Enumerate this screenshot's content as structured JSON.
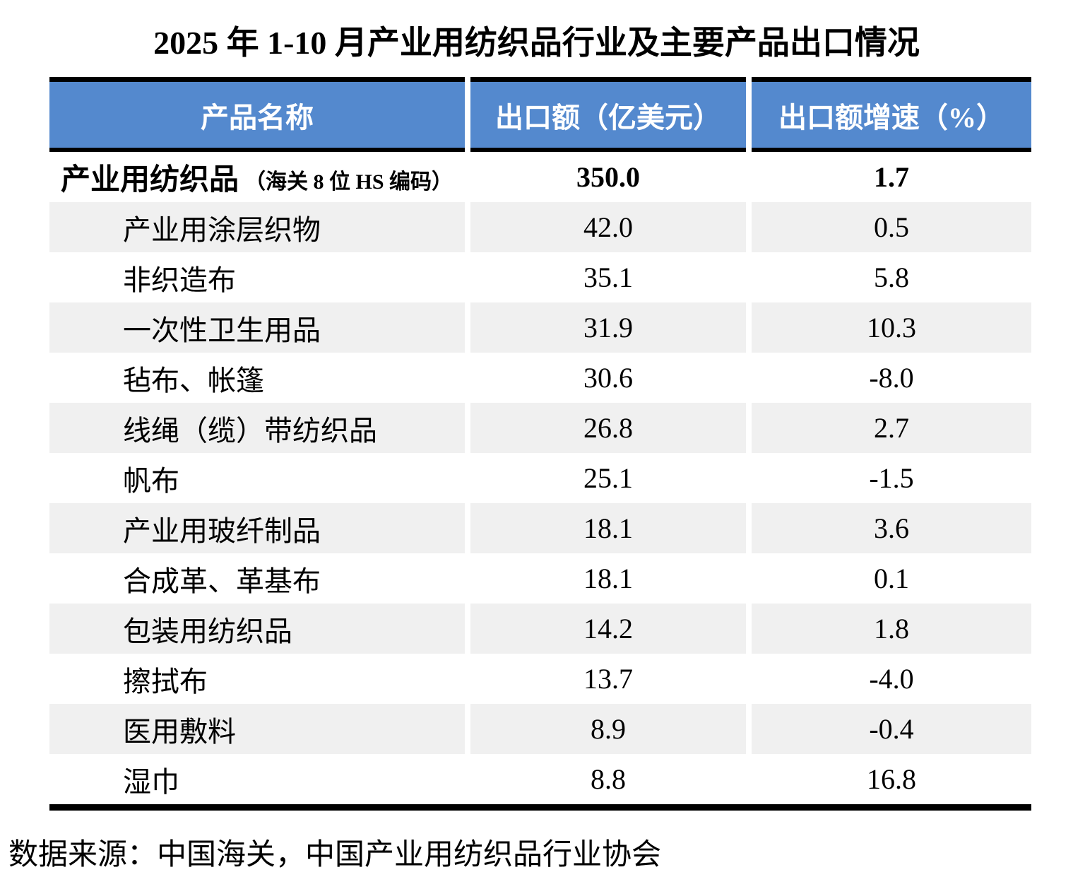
{
  "title": "2025 年 1-10 月产业用纺织品行业及主要产品出口情况",
  "footer": "数据来源：中国海关，中国产业用纺织品行业协会",
  "colors": {
    "header_bg": "#5489CE",
    "header_text": "#FFFFFF",
    "alt_row_bg": "#F0F0F0",
    "border": "#000000"
  },
  "chart_data": {
    "type": "table",
    "title": "2025 年 1-10 月产业用纺织品行业及主要产品出口情况",
    "columns": [
      "产品名称",
      "出口额（亿美元）",
      "出口额增速（%）"
    ],
    "total_row": {
      "name": "产业用纺织品",
      "note": "（海关 8 位 HS 编码）",
      "export_value": "350.0",
      "growth": "1.7"
    },
    "rows": [
      {
        "name": "产业用涂层织物",
        "export_value": "42.0",
        "growth": "0.5"
      },
      {
        "name": "非织造布",
        "export_value": "35.1",
        "growth": "5.8"
      },
      {
        "name": "一次性卫生用品",
        "export_value": "31.9",
        "growth": "10.3"
      },
      {
        "name": "毡布、帐篷",
        "export_value": "30.6",
        "growth": "-8.0"
      },
      {
        "name": "线绳（缆）带纺织品",
        "export_value": "26.8",
        "growth": "2.7"
      },
      {
        "name": "帆布",
        "export_value": "25.1",
        "growth": "-1.5"
      },
      {
        "name": "产业用玻纤制品",
        "export_value": "18.1",
        "growth": "3.6"
      },
      {
        "name": "合成革、革基布",
        "export_value": "18.1",
        "growth": "0.1"
      },
      {
        "name": "包装用纺织品",
        "export_value": "14.2",
        "growth": "1.8"
      },
      {
        "name": "擦拭布",
        "export_value": "13.7",
        "growth": "-4.0"
      },
      {
        "name": "医用敷料",
        "export_value": "8.9",
        "growth": "-0.4"
      },
      {
        "name": "湿巾",
        "export_value": "8.8",
        "growth": "16.8"
      }
    ],
    "source": "中国海关，中国产业用纺织品行业协会"
  }
}
